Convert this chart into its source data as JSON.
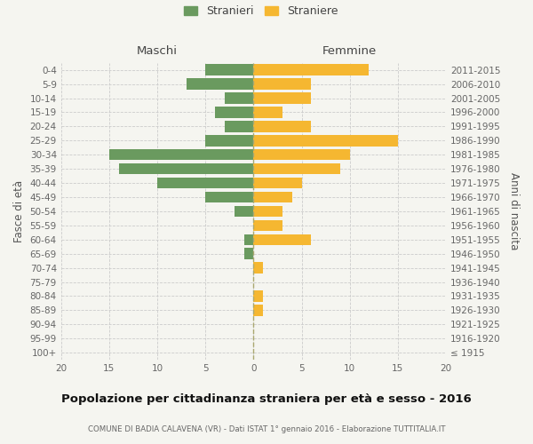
{
  "age_groups": [
    "100+",
    "95-99",
    "90-94",
    "85-89",
    "80-84",
    "75-79",
    "70-74",
    "65-69",
    "60-64",
    "55-59",
    "50-54",
    "45-49",
    "40-44",
    "35-39",
    "30-34",
    "25-29",
    "20-24",
    "15-19",
    "10-14",
    "5-9",
    "0-4"
  ],
  "birth_years": [
    "≤ 1915",
    "1916-1920",
    "1921-1925",
    "1926-1930",
    "1931-1935",
    "1936-1940",
    "1941-1945",
    "1946-1950",
    "1951-1955",
    "1956-1960",
    "1961-1965",
    "1966-1970",
    "1971-1975",
    "1976-1980",
    "1981-1985",
    "1986-1990",
    "1991-1995",
    "1996-2000",
    "2001-2005",
    "2006-2010",
    "2011-2015"
  ],
  "maschi": [
    0,
    0,
    0,
    0,
    0,
    0,
    0,
    1,
    1,
    0,
    2,
    5,
    10,
    14,
    15,
    5,
    3,
    4,
    3,
    7,
    5
  ],
  "femmine": [
    0,
    0,
    0,
    1,
    1,
    0,
    1,
    0,
    6,
    3,
    3,
    4,
    5,
    9,
    10,
    15,
    6,
    3,
    6,
    6,
    12
  ],
  "color_maschi": "#6a9a5f",
  "color_femmine": "#f5b731",
  "title": "Popolazione per cittadinanza straniera per età e sesso - 2016",
  "subtitle": "COMUNE DI BADIA CALAVENA (VR) - Dati ISTAT 1° gennaio 2016 - Elaborazione TUTTITALIA.IT",
  "xlabel_left": "Maschi",
  "xlabel_right": "Femmine",
  "ylabel_left": "Fasce di età",
  "ylabel_right": "Anni di nascita",
  "legend_maschi": "Stranieri",
  "legend_femmine": "Straniere",
  "xlim": 20,
  "background_color": "#f5f5f0",
  "grid_color": "#cccccc"
}
